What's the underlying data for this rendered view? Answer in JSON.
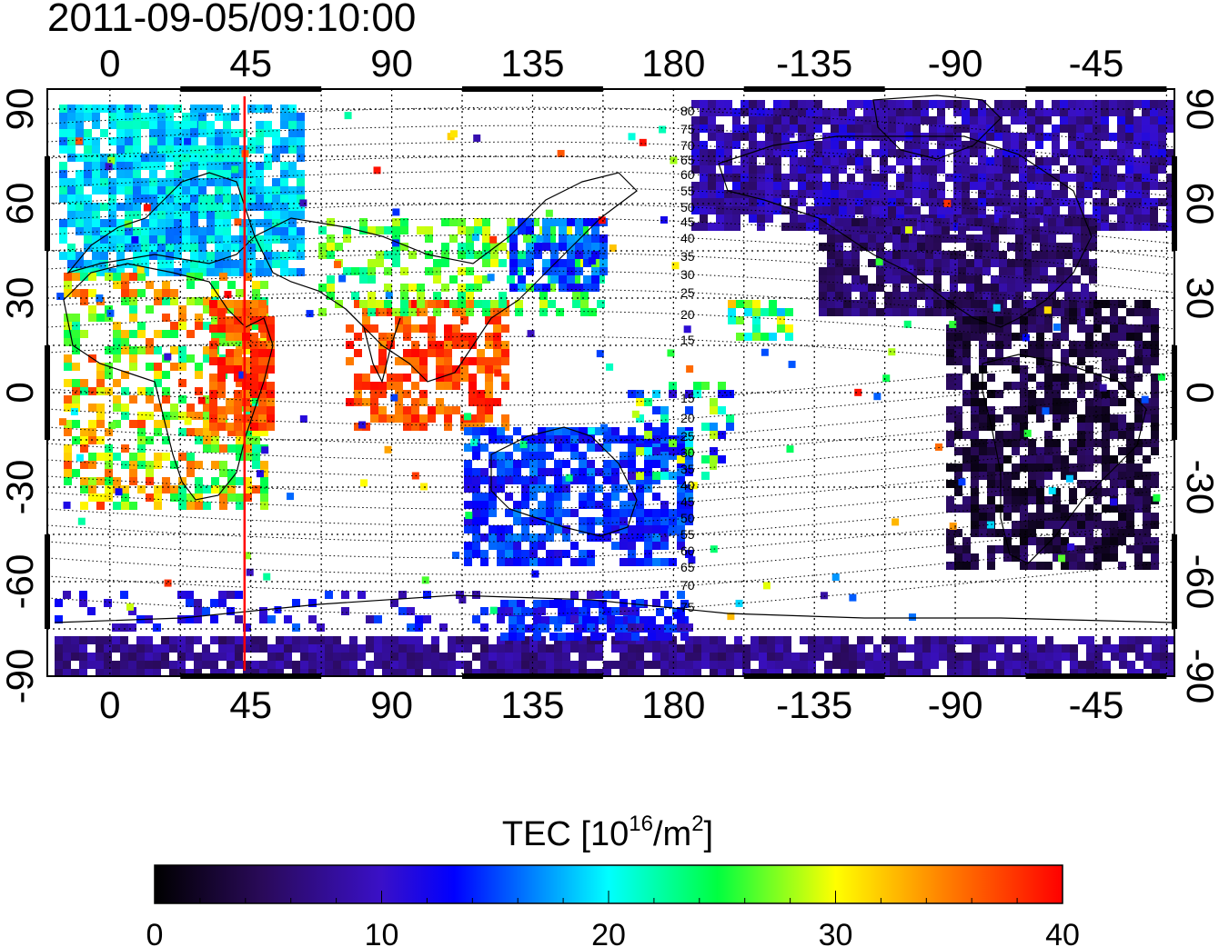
{
  "timestamp": "2011-09-05/09:10:00",
  "colorbar": {
    "title_prefix": "TEC  [10",
    "title_exp": "16",
    "title_mid": "/m",
    "title_exp2": "2",
    "title_suffix": "]",
    "ticks": [
      "0",
      "10",
      "20",
      "30",
      "40"
    ],
    "range": [
      0,
      40
    ]
  },
  "axes": {
    "lon_ticks": [
      "0",
      "45",
      "90",
      "135",
      "180",
      "-135",
      "-90",
      "-45"
    ],
    "lat_ticks": [
      "90",
      "60",
      "30",
      "0",
      "-30",
      "-60",
      "-90"
    ]
  },
  "magnetic_contours": {
    "labels_north": [
      "80",
      "75",
      "70",
      "65",
      "60",
      "55",
      "50",
      "45",
      "40",
      "35",
      "30",
      "25",
      "20",
      "15"
    ],
    "labels_south": [
      "15",
      "20",
      "25",
      "30",
      "35",
      "40",
      "45",
      "50",
      "55",
      "60",
      "65",
      "70",
      "75"
    ]
  },
  "marker": {
    "longitude": 43,
    "color": "#ff0000"
  },
  "colors": {
    "frame": "#000000",
    "grid": "#000000"
  }
}
